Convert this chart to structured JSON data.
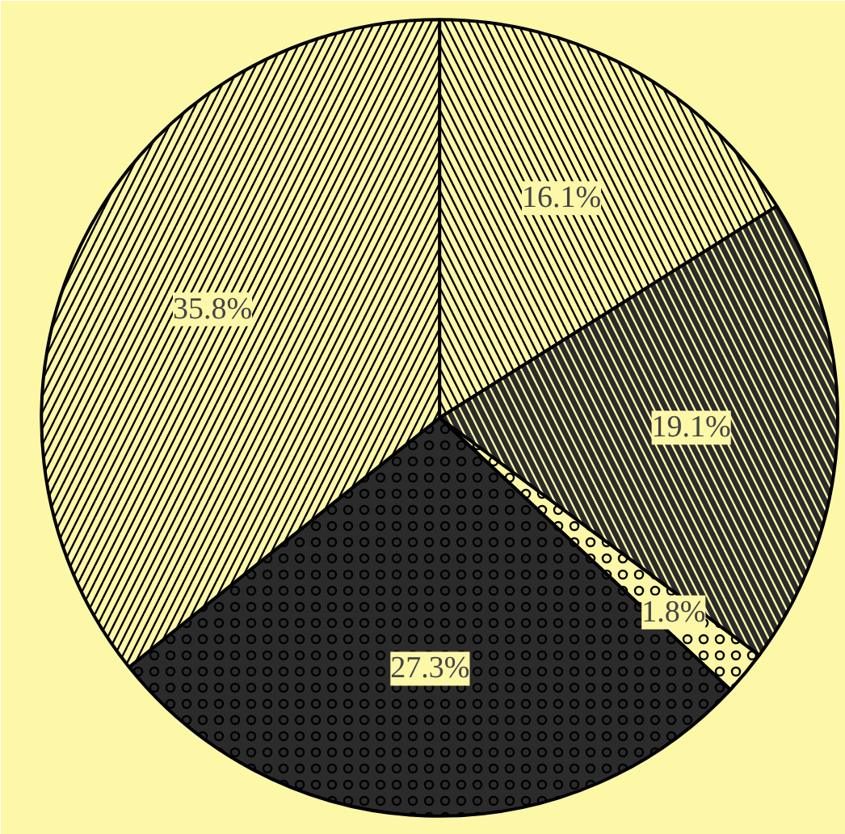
{
  "chart_data": {
    "type": "pie",
    "categories": [
      null,
      null,
      null,
      null,
      null
    ],
    "values": [
      16.1,
      19.1,
      1.8,
      27.3,
      35.8
    ],
    "colors": [
      "#fdf7a8",
      "#2b2b2b",
      "#fdf7a8",
      "#2b2b2b",
      "#fdf7a8"
    ],
    "value_labels": [
      "16.1%",
      "19.1%",
      "1.8%",
      "27.3%",
      "35.8%"
    ]
  }
}
